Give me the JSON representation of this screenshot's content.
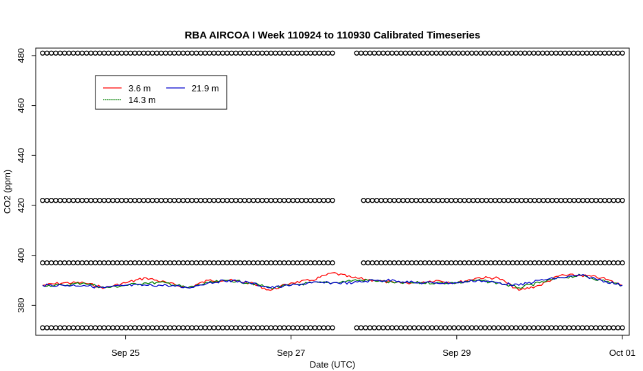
{
  "chart_data": {
    "type": "scatter",
    "title": "RBA AIRCOA I  Week 110924 to 110930  Calibrated Timeseries",
    "xlabel": "Date (UTC)",
    "ylabel": "CO2 (ppm)",
    "x_ticks": [
      {
        "x": "2011-09-25",
        "label": "Sep 25"
      },
      {
        "x": "2011-09-27",
        "label": "Sep 27"
      },
      {
        "x": "2011-09-29",
        "label": "Sep 29"
      },
      {
        "x": "2011-10-01",
        "label": "Oct 01"
      }
    ],
    "y_ticks": [
      380,
      400,
      420,
      440,
      460,
      480
    ],
    "xlim": [
      "2011-09-23T22:00",
      "2011-10-01T02:00"
    ],
    "ylim": [
      368,
      483
    ],
    "legend": {
      "placement": "top-left",
      "entries": [
        {
          "name": "3.6 m",
          "color": "#ff0000"
        },
        {
          "name": "21.9 m",
          "color": "#0000cc"
        },
        {
          "name": "14.3 m",
          "color": "#008000"
        }
      ]
    },
    "series": [
      {
        "name": "3.6 m",
        "color": "#ff0000",
        "x": [
          "2011-09-24T00:00",
          "2011-09-24T06:00",
          "2011-09-24T12:00",
          "2011-09-24T18:00",
          "2011-09-25T00:00",
          "2011-09-25T06:00",
          "2011-09-25T12:00",
          "2011-09-25T18:00",
          "2011-09-26T00:00",
          "2011-09-26T06:00",
          "2011-09-26T12:00",
          "2011-09-26T18:00",
          "2011-09-27T00:00",
          "2011-09-27T06:00",
          "2011-09-27T12:00",
          "2011-09-27T18:00",
          "2011-09-28T00:00",
          "2011-09-28T06:00",
          "2011-09-28T12:00",
          "2011-09-28T18:00",
          "2011-09-29T00:00",
          "2011-09-29T06:00",
          "2011-09-29T12:00",
          "2011-09-29T18:00",
          "2011-09-30T00:00",
          "2011-09-30T06:00",
          "2011-09-30T12:00",
          "2011-09-30T18:00",
          "2011-10-01T00:00"
        ],
        "y": [
          388,
          389,
          389,
          387,
          389,
          391,
          389,
          387,
          390,
          390,
          389,
          386,
          389,
          390,
          393,
          391,
          390,
          389,
          389,
          390,
          389,
          391,
          391,
          386,
          388,
          392,
          392,
          391,
          388
        ]
      },
      {
        "name": "14.3 m",
        "color": "#008000",
        "x": [
          "2011-09-24T00:00",
          "2011-09-24T06:00",
          "2011-09-24T12:00",
          "2011-09-24T18:00",
          "2011-09-25T00:00",
          "2011-09-25T06:00",
          "2011-09-25T12:00",
          "2011-09-25T18:00",
          "2011-09-26T00:00",
          "2011-09-26T06:00",
          "2011-09-26T12:00",
          "2011-09-26T18:00",
          "2011-09-27T00:00",
          "2011-09-27T06:00",
          "2011-09-27T12:00",
          "2011-09-27T18:00",
          "2011-09-28T00:00",
          "2011-09-28T06:00",
          "2011-09-28T12:00",
          "2011-09-28T18:00",
          "2011-09-29T00:00",
          "2011-09-29T06:00",
          "2011-09-29T12:00",
          "2011-09-29T18:00",
          "2011-09-30T00:00",
          "2011-09-30T06:00",
          "2011-09-30T12:00",
          "2011-09-30T18:00",
          "2011-10-01T00:00"
        ],
        "y": [
          388,
          388,
          389,
          387,
          388,
          389,
          389,
          387,
          389,
          390,
          389,
          387,
          388,
          389,
          389,
          390,
          390,
          389,
          389,
          389,
          389,
          390,
          389,
          387,
          389,
          391,
          392,
          390,
          388
        ]
      },
      {
        "name": "21.9 m",
        "color": "#0000cc",
        "x": [
          "2011-09-24T00:00",
          "2011-09-24T06:00",
          "2011-09-24T12:00",
          "2011-09-24T18:00",
          "2011-09-25T00:00",
          "2011-09-25T06:00",
          "2011-09-25T12:00",
          "2011-09-25T18:00",
          "2011-09-26T00:00",
          "2011-09-26T06:00",
          "2011-09-26T12:00",
          "2011-09-26T18:00",
          "2011-09-27T00:00",
          "2011-09-27T06:00",
          "2011-09-27T12:00",
          "2011-09-27T18:00",
          "2011-09-28T00:00",
          "2011-09-28T06:00",
          "2011-09-28T12:00",
          "2011-09-28T18:00",
          "2011-09-29T00:00",
          "2011-09-29T06:00",
          "2011-09-29T12:00",
          "2011-09-29T18:00",
          "2011-09-30T00:00",
          "2011-09-30T06:00",
          "2011-09-30T12:00",
          "2011-09-30T18:00",
          "2011-10-01T00:00"
        ],
        "y": [
          388,
          388,
          388,
          387,
          388,
          388,
          388,
          387,
          389,
          390,
          389,
          387,
          388,
          389,
          389,
          389,
          390,
          390,
          389,
          389,
          389,
          390,
          389,
          388,
          390,
          391,
          392,
          390,
          388
        ]
      }
    ],
    "marker_rows": [
      {
        "y": 481,
        "segments": [
          [
            "2011-09-24T00:00",
            "2011-09-27T12:00"
          ],
          [
            "2011-09-27T19:00",
            "2011-10-01T00:00"
          ]
        ]
      },
      {
        "y": 422,
        "segments": [
          [
            "2011-09-24T00:00",
            "2011-09-27T12:00"
          ],
          [
            "2011-09-27T21:00",
            "2011-10-01T00:00"
          ]
        ]
      },
      {
        "y": 397,
        "segments": [
          [
            "2011-09-24T00:00",
            "2011-09-27T12:00"
          ],
          [
            "2011-09-27T21:00",
            "2011-10-01T00:00"
          ]
        ]
      },
      {
        "y": 371,
        "segments": [
          [
            "2011-09-24T00:00",
            "2011-09-27T12:00"
          ],
          [
            "2011-09-27T19:00",
            "2011-10-01T00:00"
          ]
        ]
      }
    ]
  }
}
